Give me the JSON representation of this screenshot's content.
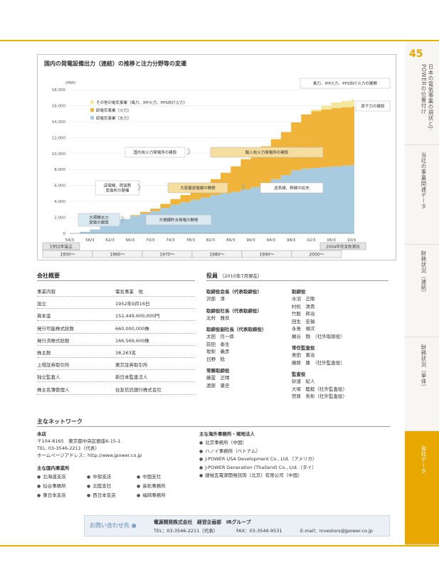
{
  "page_number": "45",
  "side_tabs": [
    {
      "label": "日本の電気事業の現状とJ-POWERの位置付け"
    },
    {
      "label": "当社の事業関連データ"
    },
    {
      "label": "財務状況（連結）"
    },
    {
      "label": "財務状況（単体）"
    },
    {
      "label": "会社データ"
    }
  ],
  "chart_data": {
    "type": "area",
    "title": "国内の発電設備出力（連結）の推移と注力分野等の変遷",
    "ylabel": "(MW)",
    "ylim": [
      0,
      18000
    ],
    "yticks": [
      "0",
      "2,000",
      "4,000",
      "6,000",
      "8,000",
      "10,000",
      "12,000",
      "14,000",
      "16,000",
      "18,000"
    ],
    "x_ticks": [
      "54/3",
      "58/3",
      "62/3",
      "66/3",
      "70/3",
      "74/3",
      "78/3",
      "82/3",
      "86/3",
      "90/3",
      "94/3",
      "98/3",
      "02/3",
      "06/3",
      "10/3"
    ],
    "x_start_years": [
      1954,
      2010
    ],
    "series": [
      {
        "name": "卸電気事業（水力）",
        "color": "#a8cbe0",
        "x": [
          1954,
          1956,
          1958,
          1960,
          1962,
          1964,
          1966,
          1968,
          1970,
          1972,
          1974,
          1976,
          1978,
          1980,
          1982,
          1984,
          1986,
          1988,
          1990,
          1992,
          1994,
          1996,
          1998,
          2000,
          2002,
          2004,
          2006,
          2008,
          2010
        ],
        "values": [
          0,
          200,
          500,
          900,
          1300,
          1800,
          2200,
          2500,
          2800,
          3200,
          3600,
          3900,
          4200,
          4500,
          4800,
          5000,
          5200,
          5500,
          5800,
          6200,
          6800,
          7300,
          7900,
          8100,
          8200,
          8300,
          8400,
          8500,
          8600
        ]
      },
      {
        "name": "卸電気事業（火力）",
        "color": "#f0b43a",
        "x": [
          1954,
          1956,
          1958,
          1960,
          1962,
          1964,
          1966,
          1968,
          1970,
          1972,
          1974,
          1976,
          1978,
          1980,
          1982,
          1984,
          1986,
          1988,
          1990,
          1992,
          1994,
          1996,
          1998,
          2000,
          2002,
          2004,
          2006,
          2008,
          2010
        ],
        "values": [
          0,
          0,
          0,
          0,
          0,
          0,
          100,
          200,
          300,
          500,
          700,
          900,
          1000,
          1500,
          2000,
          2600,
          3200,
          3800,
          4300,
          4700,
          5000,
          5400,
          6000,
          6800,
          7100,
          7200,
          7300,
          7300,
          7300
        ]
      },
      {
        "name": "その他の電気事業（風力、IPP火力、PPS向け火力）",
        "color": "#f4e8a0",
        "x": [
          1954,
          1956,
          1958,
          1960,
          1962,
          1964,
          1966,
          1968,
          1970,
          1972,
          1974,
          1976,
          1978,
          1980,
          1982,
          1984,
          1986,
          1988,
          1990,
          1992,
          1994,
          1996,
          1998,
          2000,
          2002,
          2004,
          2006,
          2008,
          2010
        ],
        "values": [
          0,
          0,
          0,
          0,
          0,
          0,
          0,
          0,
          0,
          0,
          0,
          0,
          0,
          0,
          0,
          0,
          0,
          0,
          0,
          0,
          0,
          0,
          0,
          0,
          200,
          500,
          700,
          800,
          900
        ]
      }
    ],
    "annotations": [
      {
        "text": "大規模水力発電の開発",
        "type": "box-blue"
      },
      {
        "text": "大規模貯水発電の開発",
        "type": "box-blue"
      },
      {
        "text": "送電線、周波数変換所の整備",
        "type": "box-white"
      },
      {
        "text": "大容量送電線の開発",
        "type": "box-yellow"
      },
      {
        "text": "国内炭火力発電所の建設",
        "type": "box-white"
      },
      {
        "text": "輸入炭火力発電所の建設",
        "type": "box-yellow"
      },
      {
        "text": "送系線、幹線の拡充",
        "type": "box-white"
      },
      {
        "text": "風力、IPP火力、PPS向け火力の展開",
        "type": "box-white"
      },
      {
        "text": "原子力の建設",
        "type": "box-white"
      }
    ],
    "milestones": [
      "1952年設立",
      "2004年完全民営化"
    ],
    "decades": [
      "1950～",
      "1960～",
      "1970～",
      "1980～",
      "1990～",
      "2000～"
    ]
  },
  "company": {
    "title": "会社概要",
    "rows": [
      {
        "k": "事業内容",
        "v": "電気事業　他"
      },
      {
        "k": "設立",
        "v": "1952年9月16日"
      },
      {
        "k": "資本金",
        "v": "152,449,600,000円"
      },
      {
        "k": "発行可能株式総数",
        "v": "660,000,000株"
      },
      {
        "k": "発行済株式総数",
        "v": "166,569,600株"
      },
      {
        "k": "株主数",
        "v": "38,263名"
      },
      {
        "k": "上場証券取引所",
        "v": "東京証券取引所"
      },
      {
        "k": "独立監査人",
        "v": "新日本監査法人"
      },
      {
        "k": "株主名簿管理人",
        "v": "住友信託銀行株式会社"
      }
    ]
  },
  "officers": {
    "title": "役員",
    "date": "（2010年7月現在）",
    "groups": [
      {
        "role": "取締役会長（代表取締役）",
        "names": [
          "沢部　清"
        ]
      },
      {
        "role": "取締役社長（代表取締役）",
        "names": [
          "北村　雅良"
        ]
      },
      {
        "role": "取締役副社長（代表取締役）",
        "names": [
          "太田　信一郎",
          "前田　泰生",
          "坂梨　義彦",
          "日野　稔"
        ]
      },
      {
        "role": "常務取締役",
        "names": [
          "藤冨　正晴",
          "渡部　肇史"
        ]
      }
    ],
    "directors": {
      "role": "取締役",
      "names": [
        "水沼　正剛",
        "村松　清貴",
        "竹股　邦治",
        "田生　宏禎",
        "永島　順次",
        "梶谷　剛　（社外取締役）"
      ]
    },
    "auditors_full": {
      "role": "常任監査役",
      "names": [
        "島田　寛治",
        "藤原　隆　（社外監査役）"
      ]
    },
    "auditors": {
      "role": "監査役",
      "names": [
        "砂道　紀人",
        "大塚　睦毅（社外監査役）",
        "宮原　秀彰（社外監査役）"
      ]
    }
  },
  "network": {
    "title": "主なネットワーク",
    "hq_label": "本店",
    "hq_lines": [
      "〒104-8165　東京都中央区銀座6-15-1",
      "TEL. 03-3546-2211（代表）",
      "ホームページアドレス：http://www.jpower.co.jp"
    ],
    "domestic_label": "主な国内事業所",
    "domestic": [
      "北海道支店",
      "中部支店",
      "中国支社",
      "仙台事務所",
      "北陸支社",
      "高松事務所",
      "東日本支店",
      "西日本支店",
      "福岡事務所"
    ],
    "overseas_label": "主な海外事務所・現地法人",
    "overseas": [
      "北京事務所（中国）",
      "ハノイ事務所（ベトナム）",
      "J-POWER USA Development Co., Ltd.（アメリカ）",
      "J-POWER Generation (Thailand) Co., Ltd.（タイ）",
      "捷帕瓦電源開発諮詢（北京）有限公司（中国）"
    ]
  },
  "contact": {
    "label": "お問い合わせ先",
    "org": "電源開発株式会社　経営企画部　IRグループ",
    "tel": "TEL：03-3546-2211（代表）",
    "fax": "FAX：03-3546-9531",
    "email": "E-mail：investors@jpower.co.jp"
  }
}
